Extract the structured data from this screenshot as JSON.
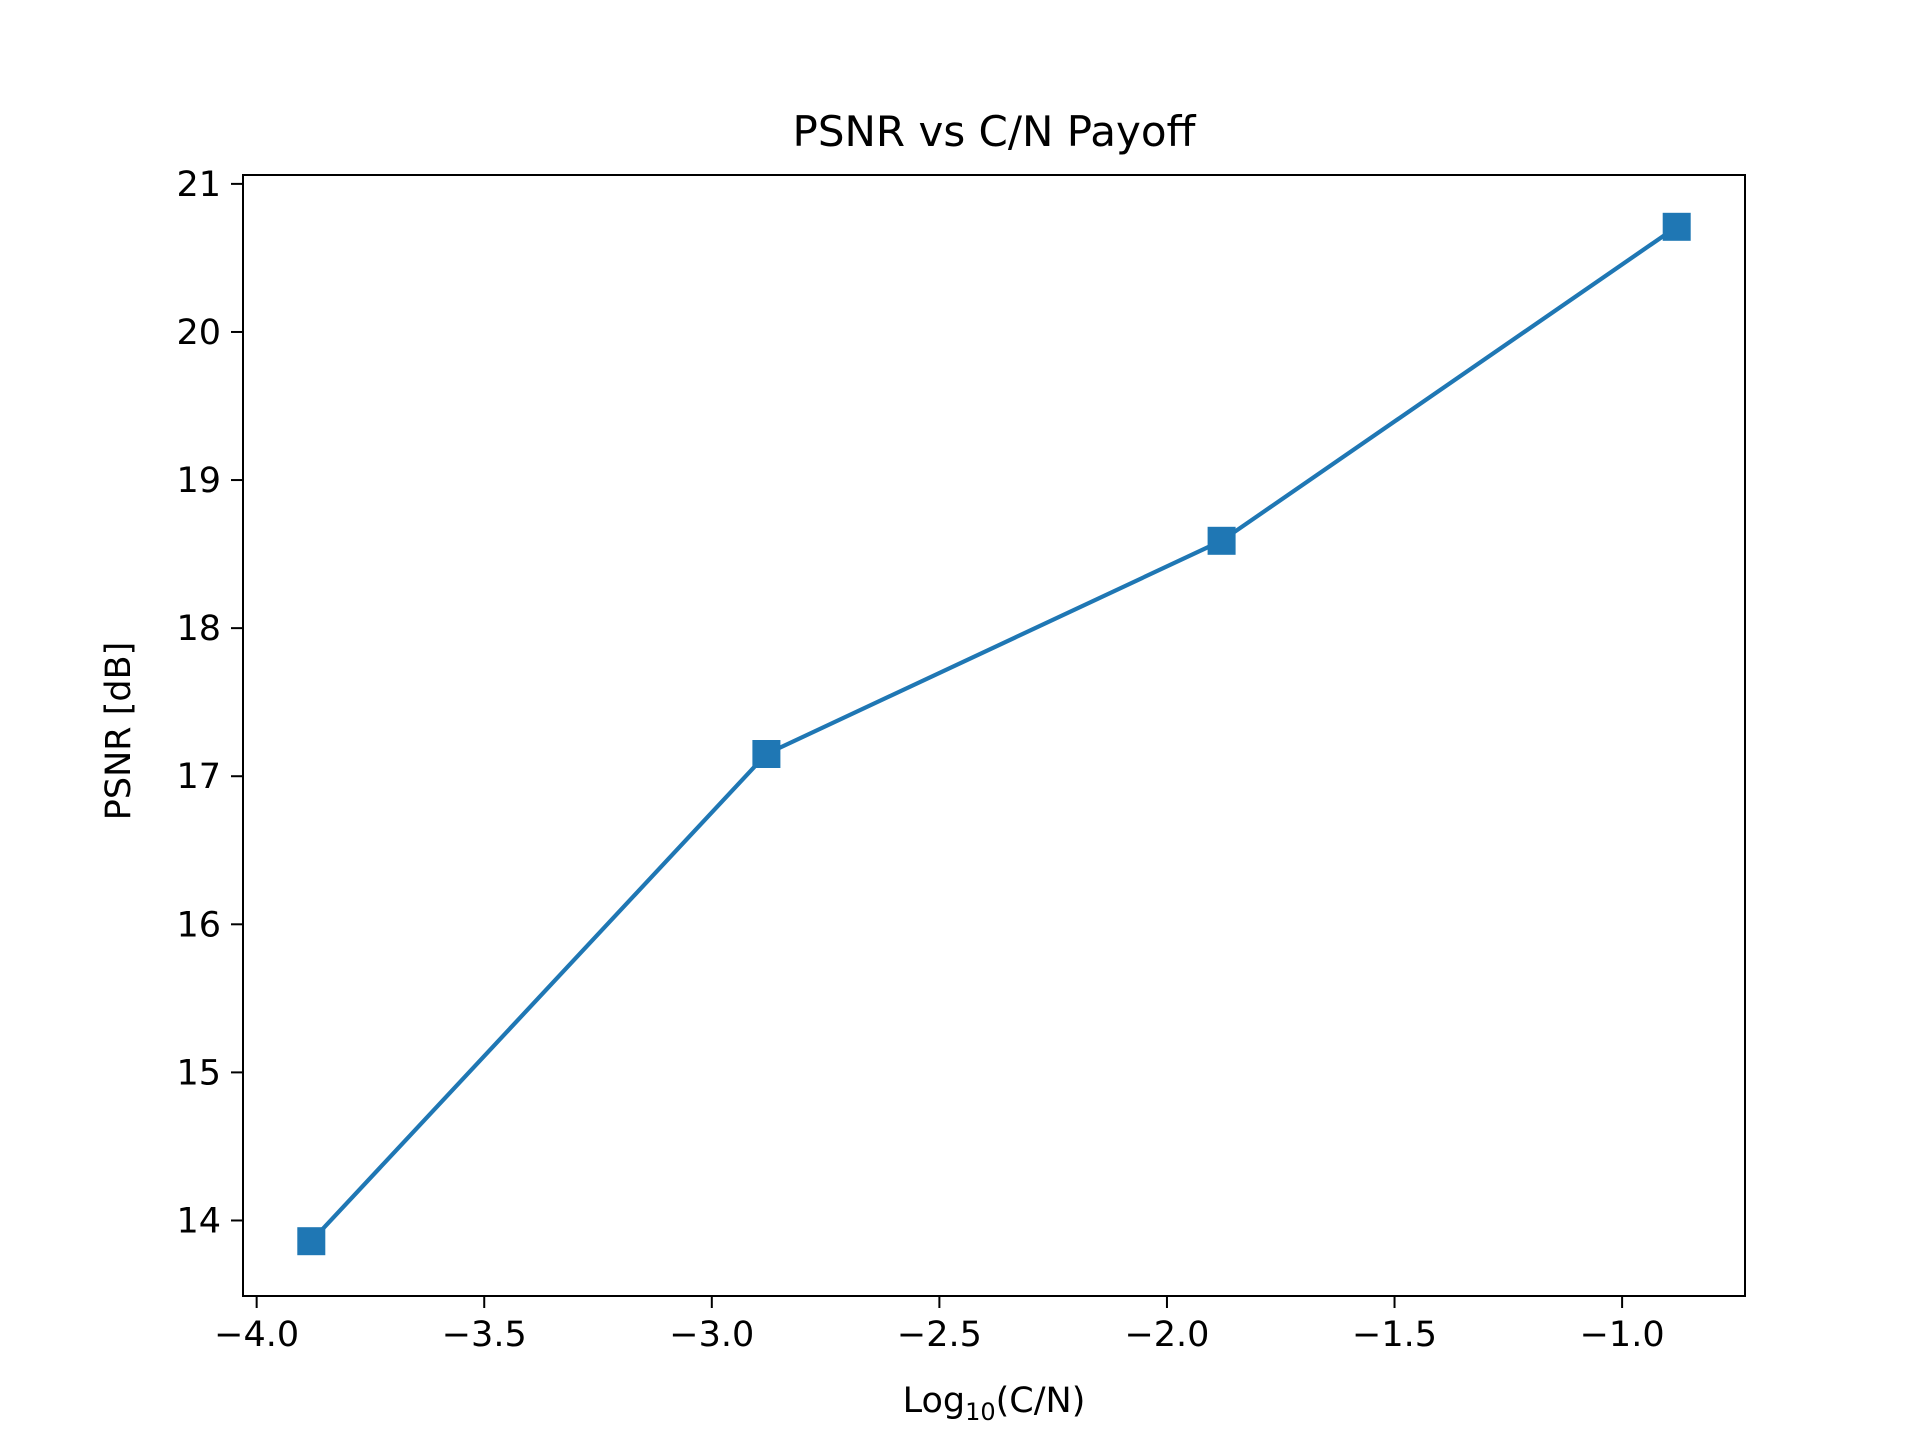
{
  "chart_data": {
    "type": "line",
    "title": "PSNR vs C/N Payoff",
    "xlabel": {
      "prefix": "Log",
      "subscript": "10",
      "suffix": "(C/N)"
    },
    "ylabel": "PSNR [dB]",
    "xlim": [
      -4.03,
      -0.73
    ],
    "ylim": [
      13.49,
      21.06
    ],
    "x_ticks": [
      -4.0,
      -3.5,
      -3.0,
      -2.5,
      -2.0,
      -1.5,
      -1.0
    ],
    "x_tick_labels": [
      "−4.0",
      "−3.5",
      "−3.0",
      "−2.5",
      "−2.0",
      "−1.5",
      "−1.0"
    ],
    "y_ticks": [
      14,
      15,
      16,
      17,
      18,
      19,
      20,
      21
    ],
    "y_tick_labels": [
      "14",
      "15",
      "16",
      "17",
      "18",
      "19",
      "20",
      "21"
    ],
    "grid": false,
    "series": [
      {
        "color": "#1f77b4",
        "marker": "square",
        "x": [
          -3.88,
          -2.88,
          -1.88,
          -0.88
        ],
        "y": [
          13.86,
          17.15,
          18.59,
          20.71
        ]
      }
    ]
  }
}
